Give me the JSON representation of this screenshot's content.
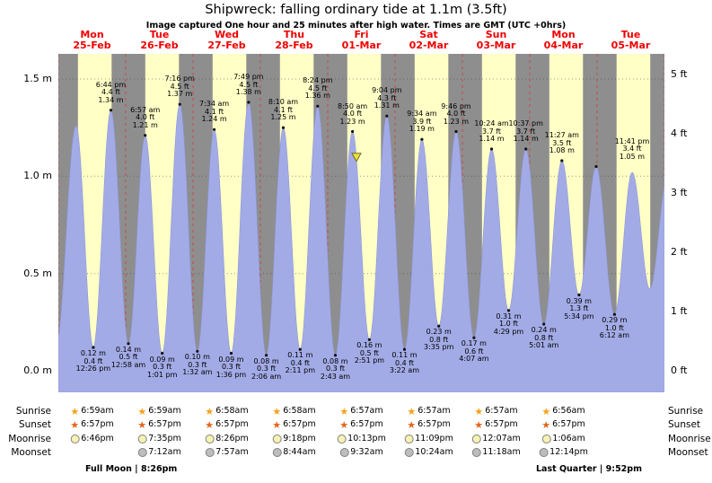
{
  "title": "Shipwreck: falling  ordinary tide at 1.1m (3.5ft)",
  "subtitle": "Image captured One hour and 25 minutes after high water. Times are GMT (UTC +0hrs)",
  "colors": {
    "night_band": "#8e8e8e",
    "day_band": "#ffffc6",
    "tide_fill": "#a3abe6",
    "tide_edge": "#8d96dc",
    "date_red": "#f00000",
    "day_line": "#e03030",
    "grid": "#3a3a3a",
    "dot": "#111111",
    "marker_fill": "#ece23f",
    "marker_edge": "#6f6a1e",
    "sunrise_star": "#f2a21b",
    "sunset_star": "#e4641c",
    "moonrise_circle": "#f7f2b2",
    "moonset_circle": "#bdbdbd"
  },
  "days": [
    {
      "name": "Mon",
      "date": "25-Feb"
    },
    {
      "name": "Tue",
      "date": "26-Feb"
    },
    {
      "name": "Wed",
      "date": "27-Feb"
    },
    {
      "name": "Thu",
      "date": "28-Feb"
    },
    {
      "name": "Fri",
      "date": "01-Mar"
    },
    {
      "name": "Sat",
      "date": "02-Mar"
    },
    {
      "name": "Sun",
      "date": "03-Mar"
    },
    {
      "name": "Mon",
      "date": "04-Mar"
    },
    {
      "name": "Tue",
      "date": "05-Mar"
    }
  ],
  "axis": {
    "left": [
      {
        "label": "1.5 m",
        "m": 1.5
      },
      {
        "label": "1.0 m",
        "m": 1.0
      },
      {
        "label": "0.5 m",
        "m": 0.5
      },
      {
        "label": "0.0 m",
        "m": 0.0
      }
    ],
    "right": [
      {
        "label": "5 ft",
        "ft": 5
      },
      {
        "label": "4 ft",
        "ft": 4
      },
      {
        "label": "3 ft",
        "ft": 3
      },
      {
        "label": "2 ft",
        "ft": 2
      },
      {
        "label": "1 ft",
        "ft": 1
      },
      {
        "label": "0 ft",
        "ft": 0
      }
    ]
  },
  "chart_data": {
    "type": "area",
    "title": "Shipwreck: falling  ordinary tide at 1.1m (3.5ft)",
    "x_unit": "days",
    "x_range": [
      0,
      9
    ],
    "ylim_m": [
      -0.11,
      1.63
    ],
    "daylight": {
      "start_frac": 0.29,
      "end_frac": 0.79
    },
    "marker": {
      "t": 4.427,
      "h": 1.1
    },
    "extremes": [
      {
        "t": -0.03,
        "h": 0.14
      },
      {
        "t": 0.262,
        "h": 1.26
      },
      {
        "kind": "low",
        "t": 0.5181,
        "h": 0.12,
        "m": "0.12 m",
        "ft": "0.4 ft",
        "time": "12:26 pm"
      },
      {
        "kind": "high",
        "t": 0.7806,
        "h": 1.34,
        "m": "1.34 m",
        "ft": "4.4 ft",
        "time": "6:44 pm"
      },
      {
        "kind": "low",
        "t": 1.0403,
        "h": 0.14,
        "m": "0.14 m",
        "ft": "0.5 ft",
        "time": "12:58 am"
      },
      {
        "kind": "high",
        "t": 1.2896,
        "h": 1.21,
        "m": "1.21 m",
        "ft": "4.0 ft",
        "time": "6:57 am"
      },
      {
        "kind": "low",
        "t": 1.5424,
        "h": 0.09,
        "m": "0.09 m",
        "ft": "0.3 ft",
        "time": "1:01 pm"
      },
      {
        "kind": "high",
        "t": 1.8028,
        "h": 1.37,
        "m": "1.37 m",
        "ft": "4.5 ft",
        "time": "7:16 pm"
      },
      {
        "kind": "low",
        "t": 2.0639,
        "h": 0.1,
        "m": "0.10 m",
        "ft": "0.3 ft",
        "time": "1:32 am"
      },
      {
        "kind": "high",
        "t": 2.3153,
        "h": 1.24,
        "m": "1.24 m",
        "ft": "4.1 ft",
        "time": "7:34 am"
      },
      {
        "kind": "low",
        "t": 2.5667,
        "h": 0.09,
        "m": "0.09 m",
        "ft": "0.3 ft",
        "time": "1:36 pm"
      },
      {
        "kind": "high",
        "t": 2.8257,
        "h": 1.38,
        "m": "1.38 m",
        "ft": "4.5 ft",
        "time": "7:49 pm"
      },
      {
        "kind": "low",
        "t": 3.0875,
        "h": 0.08,
        "m": "0.08 m",
        "ft": "0.3 ft",
        "time": "2:06 am"
      },
      {
        "kind": "high",
        "t": 3.3403,
        "h": 1.25,
        "m": "1.25 m",
        "ft": "4.1 ft",
        "time": "8:10 am"
      },
      {
        "kind": "low",
        "t": 3.591,
        "h": 0.11,
        "m": "0.11 m",
        "ft": "0.4 ft",
        "time": "2:11 pm"
      },
      {
        "kind": "high",
        "t": 3.85,
        "h": 1.36,
        "m": "1.36 m",
        "ft": "4.5 ft",
        "time": "8:24 pm"
      },
      {
        "kind": "low",
        "t": 4.1132,
        "h": 0.08,
        "m": "0.08 m",
        "ft": "0.3 ft",
        "time": "2:43 am"
      },
      {
        "kind": "high",
        "t": 4.3681,
        "h": 1.23,
        "m": "1.23 m",
        "ft": "4.0 ft",
        "time": "8:50 am"
      },
      {
        "kind": "low",
        "t": 4.6188,
        "h": 0.16,
        "m": "0.16 m",
        "ft": "0.5 ft",
        "time": "2:51 pm"
      },
      {
        "kind": "high",
        "t": 4.8778,
        "h": 1.31,
        "m": "1.31 m",
        "ft": "4.3 ft",
        "time": "9:04 pm"
      },
      {
        "kind": "low",
        "t": 5.1403,
        "h": 0.11,
        "m": "0.11 m",
        "ft": "0.4 ft",
        "time": "3:22 am"
      },
      {
        "kind": "high",
        "t": 5.3986,
        "h": 1.19,
        "m": "1.19 m",
        "ft": "3.9 ft",
        "time": "9:34 am"
      },
      {
        "kind": "low",
        "t": 5.6493,
        "h": 0.23,
        "m": "0.23 m",
        "ft": "0.8 ft",
        "time": "3:35 pm"
      },
      {
        "kind": "high",
        "t": 5.9069,
        "h": 1.23,
        "m": "1.23 m",
        "ft": "4.0 ft",
        "time": "9:46 pm"
      },
      {
        "kind": "low",
        "t": 6.1715,
        "h": 0.17,
        "m": "0.17 m",
        "ft": "0.6 ft",
        "time": "4:07 am"
      },
      {
        "kind": "high",
        "t": 6.4333,
        "h": 1.14,
        "m": "1.14 m",
        "ft": "3.7 ft",
        "time": "10:24 am"
      },
      {
        "kind": "low",
        "t": 6.6868,
        "h": 0.31,
        "m": "0.31 m",
        "ft": "1.0 ft",
        "time": "4:29 pm"
      },
      {
        "kind": "high",
        "t": 6.9424,
        "h": 1.14,
        "m": "1.14 m",
        "ft": "3.7 ft",
        "time": "10:37 pm"
      },
      {
        "kind": "low",
        "t": 7.209,
        "h": 0.24,
        "m": "0.24 m",
        "ft": "0.8 ft",
        "time": "5:01 am"
      },
      {
        "kind": "high",
        "t": 7.4771,
        "h": 1.08,
        "m": "1.08 m",
        "ft": "3.5 ft",
        "time": "11:27 am"
      },
      {
        "kind": "low",
        "t": 7.7319,
        "h": 0.39,
        "m": "0.39 m",
        "ft": "1.3 ft",
        "time": "5:34 pm"
      },
      {
        "kind": "high",
        "t": 7.9868,
        "h": 1.05,
        "m": "1.05 m",
        "ft": "3.4 ft",
        "time": "11:41 pm",
        "dx": 40
      },
      {
        "kind": "low",
        "t": 8.2583,
        "h": 0.29,
        "m": "0.29 m",
        "ft": "1.0 ft",
        "time": "6:12 am"
      },
      {
        "t": 8.522,
        "h": 1.02
      },
      {
        "t": 8.783,
        "h": 0.42
      },
      {
        "t": 9.05,
        "h": 1.0
      }
    ]
  },
  "astro": {
    "rows": [
      {
        "name": "sunrise",
        "label": "Sunrise",
        "icon": "star",
        "entries": [
          {
            "day": 0,
            "time": "6:59am"
          },
          {
            "day": 1,
            "time": "6:59am"
          },
          {
            "day": 2,
            "time": "6:58am"
          },
          {
            "day": 3,
            "time": "6:58am"
          },
          {
            "day": 4,
            "time": "6:57am"
          },
          {
            "day": 5,
            "time": "6:57am"
          },
          {
            "day": 6,
            "time": "6:57am"
          },
          {
            "day": 7,
            "time": "6:56am"
          }
        ]
      },
      {
        "name": "sunset",
        "label": "Sunset",
        "icon": "star",
        "entries": [
          {
            "day": 0,
            "time": "6:57pm"
          },
          {
            "day": 1,
            "time": "6:57pm"
          },
          {
            "day": 2,
            "time": "6:57pm"
          },
          {
            "day": 3,
            "time": "6:57pm"
          },
          {
            "day": 4,
            "time": "6:57pm"
          },
          {
            "day": 5,
            "time": "6:57pm"
          },
          {
            "day": 6,
            "time": "6:57pm"
          },
          {
            "day": 7,
            "time": "6:57pm"
          }
        ]
      },
      {
        "name": "moonrise",
        "label": "Moonrise",
        "icon": "circle",
        "entries": [
          {
            "day": 0,
            "time": "6:46pm"
          },
          {
            "day": 1,
            "time": "7:35pm"
          },
          {
            "day": 2,
            "time": "8:26pm"
          },
          {
            "day": 3,
            "time": "9:18pm"
          },
          {
            "day": 4,
            "time": "10:13pm"
          },
          {
            "day": 5,
            "time": "11:09pm"
          },
          {
            "day": 6,
            "time": "12:07am"
          },
          {
            "day": 7,
            "time": "1:06am"
          }
        ]
      },
      {
        "name": "moonset",
        "label": "Moonset",
        "icon": "circle",
        "entries": [
          {
            "day": 1,
            "time": "7:12am"
          },
          {
            "day": 2,
            "time": "7:57am"
          },
          {
            "day": 3,
            "time": "8:44am"
          },
          {
            "day": 4,
            "time": "9:32am"
          },
          {
            "day": 5,
            "time": "10:24am"
          },
          {
            "day": 6,
            "time": "11:18am"
          },
          {
            "day": 7,
            "time": "12:14pm"
          }
        ]
      }
    ],
    "footnotes": [
      "Full Moon | 8:26pm",
      "Last Quarter | 9:52pm"
    ]
  }
}
